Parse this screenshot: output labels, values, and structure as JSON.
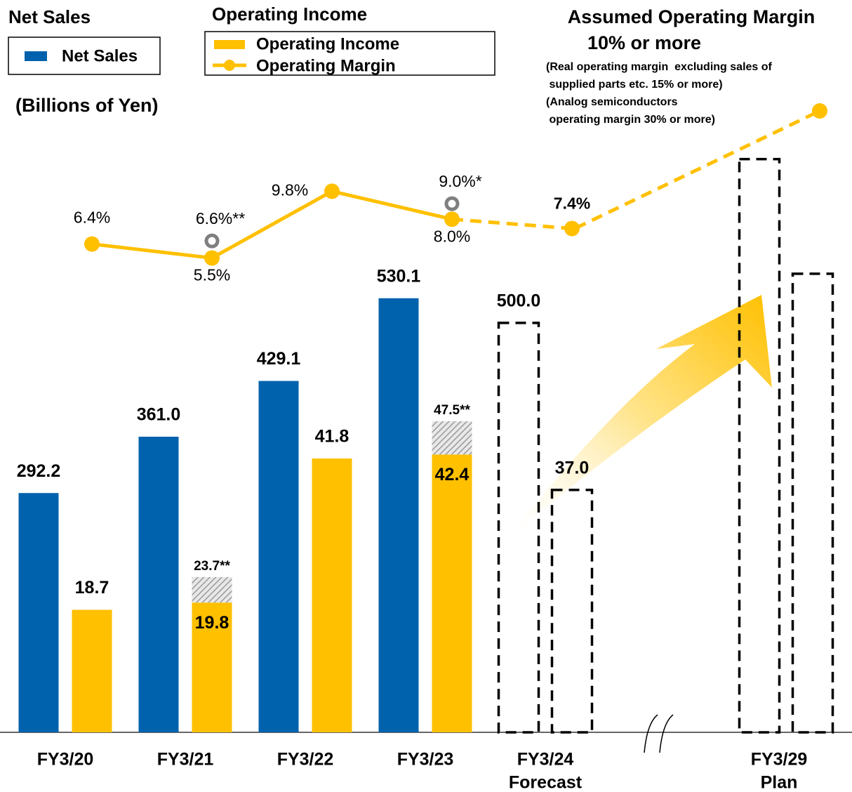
{
  "chart_data": {
    "type": "bar",
    "legend_titles": [
      "Net Sales",
      "Operating Income"
    ],
    "unit_label": "(Billions of Yen)",
    "categories": [
      [
        "FY3/20"
      ],
      [
        "FY3/21"
      ],
      [
        "FY3/22"
      ],
      [
        "FY3/23"
      ],
      [
        "FY3/24",
        "Forecast"
      ],
      [
        "FY3/29",
        "Plan"
      ]
    ],
    "ylim": [
      0,
      800
    ],
    "y2lim": [
      0,
      100
    ],
    "y3lim": [
      0,
      20
    ],
    "series": [
      {
        "name": "Net Sales",
        "color": "#0062ad",
        "values": [
          292.2,
          361.0,
          429.1,
          530.1,
          500.0,
          700
        ],
        "value_labels": [
          "292.2",
          "361.0",
          "429.1",
          "530.1",
          "500.0",
          null
        ]
      },
      {
        "name": "Operating Income",
        "color": "#ffc000",
        "axis": "y2",
        "values": [
          18.7,
          19.8,
          41.8,
          42.4,
          37.0,
          70
        ],
        "value_labels": [
          "18.7",
          "19.8",
          "41.8",
          "42.4",
          "37.0",
          null
        ]
      },
      {
        "name": "Operating Margin",
        "type": "line",
        "color": "#ffc000",
        "axis": "y3",
        "values": [
          6.4,
          5.5,
          9.8,
          8.0,
          7.4,
          null
        ],
        "value_labels": [
          "6.4%",
          "5.5%",
          "9.8%",
          "8.0%",
          "7.4%",
          null
        ]
      }
    ],
    "adjusted": {
      "operating_income": {
        "values": [
          null,
          23.7,
          null,
          47.5,
          null,
          null
        ],
        "value_labels": [
          null,
          "23.7**",
          null,
          "47.5**",
          null,
          null
        ]
      },
      "operating_margin": {
        "values": [
          null,
          6.6,
          null,
          9.0,
          null,
          null
        ],
        "value_labels": [
          null,
          "6.6%**",
          null,
          "9.0%*",
          null,
          null
        ]
      }
    },
    "annotations": [
      "Assumed Operating Margin",
      "10% or more",
      "(Real operating margin  excluding sales of",
      " supplied parts etc. 15% or more)",
      "(Analog semiconductors",
      " operating margin 30% or more)"
    ]
  }
}
